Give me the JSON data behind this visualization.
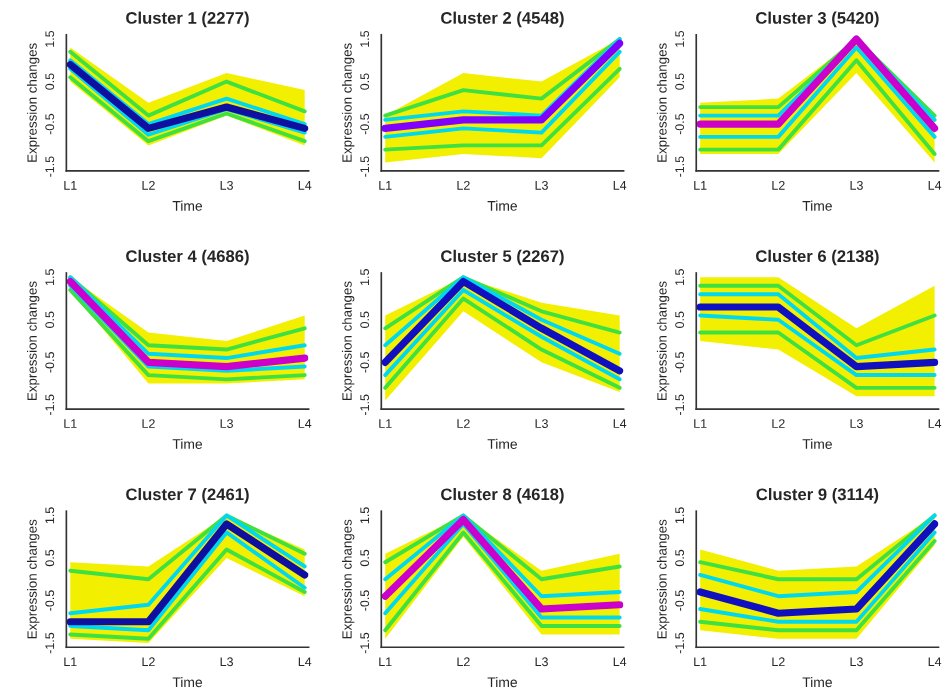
{
  "chart_data": [
    {
      "type": "line",
      "title": "Cluster 1 (2277)",
      "xlabel": "Time",
      "ylabel": "Expression changes",
      "categories": [
        "L1",
        "L2",
        "L3",
        "L4"
      ],
      "ylim": [
        -1.6,
        1.6
      ],
      "yticks": [
        -1.5,
        -0.5,
        0.5,
        1.5
      ],
      "grid": false,
      "series": [
        {
          "color": "#40e040",
          "values": [
            1.2,
            -0.3,
            0.5,
            -0.2
          ]
        },
        {
          "color": "#40e040",
          "values": [
            0.6,
            -0.9,
            -0.25,
            -0.9
          ]
        },
        {
          "color": "#00d8f0",
          "values": [
            1.0,
            -0.5,
            0.1,
            -0.5
          ]
        },
        {
          "color": "#00d8f0",
          "values": [
            0.8,
            -0.75,
            -0.15,
            -0.7
          ]
        },
        {
          "color": "#1010a0",
          "values": [
            0.9,
            -0.6,
            -0.1,
            -0.6
          ],
          "lower": [
            0.5,
            -1.0,
            -0.3,
            -1.0
          ],
          "upper": [
            1.3,
            0.0,
            0.7,
            0.3
          ]
        }
      ]
    },
    {
      "type": "line",
      "title": "Cluster 2 (4548)",
      "xlabel": "Time",
      "ylabel": "Expression changes",
      "categories": [
        "L1",
        "L2",
        "L3",
        "L4"
      ],
      "ylim": [
        -1.6,
        1.6
      ],
      "yticks": [
        -1.5,
        -0.5,
        0.5,
        1.5
      ],
      "grid": false,
      "series": [
        {
          "color": "#40e040",
          "values": [
            -0.3,
            0.3,
            0.1,
            1.5
          ]
        },
        {
          "color": "#40e040",
          "values": [
            -1.1,
            -1.0,
            -1.0,
            0.8
          ]
        },
        {
          "color": "#00d8f0",
          "values": [
            -0.4,
            -0.2,
            -0.3,
            1.5
          ]
        },
        {
          "color": "#00d8f0",
          "values": [
            -0.8,
            -0.6,
            -0.7,
            1.2
          ]
        },
        {
          "color": "#8000ff",
          "values": [
            -0.6,
            -0.4,
            -0.4,
            1.4
          ],
          "lower": [
            -1.4,
            -1.2,
            -1.3,
            0.6
          ],
          "upper": [
            -0.3,
            0.7,
            0.5,
            1.5
          ]
        }
      ]
    },
    {
      "type": "line",
      "title": "Cluster 3 (5420)",
      "xlabel": "Time",
      "ylabel": "Expression changes",
      "categories": [
        "L1",
        "L2",
        "L3",
        "L4"
      ],
      "ylim": [
        -1.6,
        1.6
      ],
      "yticks": [
        -1.5,
        -0.5,
        0.5,
        1.5
      ],
      "grid": false,
      "series": [
        {
          "color": "#40e040",
          "values": [
            -0.1,
            -0.1,
            1.5,
            -0.3
          ]
        },
        {
          "color": "#40e040",
          "values": [
            -1.1,
            -1.1,
            1.0,
            -1.2
          ]
        },
        {
          "color": "#00d8f0",
          "values": [
            -0.3,
            -0.3,
            1.5,
            -0.4
          ]
        },
        {
          "color": "#00d8f0",
          "values": [
            -0.8,
            -0.8,
            1.3,
            -0.8
          ]
        },
        {
          "color": "#cc00cc",
          "values": [
            -0.5,
            -0.5,
            1.5,
            -0.6
          ],
          "lower": [
            -1.2,
            -1.2,
            0.7,
            -1.4
          ],
          "upper": [
            0.0,
            0.1,
            1.5,
            -0.3
          ]
        }
      ]
    },
    {
      "type": "line",
      "title": "Cluster 4 (4686)",
      "xlabel": "Time",
      "ylabel": "Expression changes",
      "categories": [
        "L1",
        "L2",
        "L3",
        "L4"
      ],
      "ylim": [
        -1.6,
        1.6
      ],
      "yticks": [
        -1.5,
        -0.5,
        0.5,
        1.5
      ],
      "grid": false,
      "series": [
        {
          "color": "#40e040",
          "values": [
            1.5,
            -0.1,
            -0.2,
            0.3
          ]
        },
        {
          "color": "#40e040",
          "values": [
            1.2,
            -0.8,
            -0.9,
            -0.8
          ]
        },
        {
          "color": "#00d8f0",
          "values": [
            1.5,
            -0.3,
            -0.4,
            -0.1
          ]
        },
        {
          "color": "#00d8f0",
          "values": [
            1.3,
            -0.6,
            -0.7,
            -0.6
          ]
        },
        {
          "color": "#cc00cc",
          "values": [
            1.4,
            -0.5,
            -0.6,
            -0.4
          ],
          "lower": [
            1.2,
            -1.0,
            -1.0,
            -0.9
          ],
          "upper": [
            1.5,
            0.2,
            0.0,
            0.6
          ]
        }
      ]
    },
    {
      "type": "line",
      "title": "Cluster 5 (2267)",
      "xlabel": "Time",
      "ylabel": "Expression changes",
      "categories": [
        "L1",
        "L2",
        "L3",
        "L4"
      ],
      "ylim": [
        -1.6,
        1.6
      ],
      "yticks": [
        -1.5,
        -0.5,
        0.5,
        1.5
      ],
      "grid": false,
      "series": [
        {
          "color": "#40e040",
          "values": [
            0.3,
            1.5,
            0.7,
            0.2
          ]
        },
        {
          "color": "#40e040",
          "values": [
            -1.1,
            1.0,
            -0.2,
            -1.1
          ]
        },
        {
          "color": "#00d8f0",
          "values": [
            -0.1,
            1.5,
            0.5,
            -0.3
          ]
        },
        {
          "color": "#00d8f0",
          "values": [
            -0.8,
            1.2,
            0.1,
            -0.9
          ]
        },
        {
          "color": "#1010c0",
          "values": [
            -0.5,
            1.4,
            0.3,
            -0.7
          ],
          "lower": [
            -1.4,
            0.7,
            -0.5,
            -1.2
          ],
          "upper": [
            0.6,
            1.5,
            0.9,
            0.6
          ]
        }
      ]
    },
    {
      "type": "line",
      "title": "Cluster 6 (2138)",
      "xlabel": "Time",
      "ylabel": "Expression changes",
      "categories": [
        "L1",
        "L2",
        "L3",
        "L4"
      ],
      "ylim": [
        -1.6,
        1.6
      ],
      "yticks": [
        -1.5,
        -0.5,
        0.5,
        1.5
      ],
      "grid": false,
      "series": [
        {
          "color": "#40e040",
          "values": [
            1.3,
            1.3,
            -0.1,
            0.6
          ]
        },
        {
          "color": "#40e040",
          "values": [
            0.2,
            0.2,
            -1.1,
            -1.1
          ]
        },
        {
          "color": "#00d8f0",
          "values": [
            1.1,
            1.1,
            -0.4,
            -0.2
          ]
        },
        {
          "color": "#00d8f0",
          "values": [
            0.6,
            0.5,
            -0.8,
            -0.8
          ]
        },
        {
          "color": "#1010c0",
          "values": [
            0.8,
            0.8,
            -0.6,
            -0.5
          ],
          "lower": [
            0.0,
            -0.2,
            -1.3,
            -1.3
          ],
          "upper": [
            1.5,
            1.5,
            0.3,
            1.3
          ]
        }
      ]
    },
    {
      "type": "line",
      "title": "Cluster 7 (2461)",
      "xlabel": "Time",
      "ylabel": "Expression changes",
      "categories": [
        "L1",
        "L2",
        "L3",
        "L4"
      ],
      "ylim": [
        -1.6,
        1.6
      ],
      "yticks": [
        -1.5,
        -0.5,
        0.5,
        1.5
      ],
      "grid": false,
      "series": [
        {
          "color": "#40e040",
          "values": [
            0.2,
            0.0,
            1.5,
            0.6
          ]
        },
        {
          "color": "#40e040",
          "values": [
            -1.3,
            -1.4,
            0.7,
            -0.3
          ]
        },
        {
          "color": "#00d8f0",
          "values": [
            -0.8,
            -0.6,
            1.5,
            0.3
          ]
        },
        {
          "color": "#00d8f0",
          "values": [
            -1.1,
            -1.2,
            1.1,
            -0.2
          ]
        },
        {
          "color": "#1010a0",
          "values": [
            -1.0,
            -1.0,
            1.3,
            0.1
          ],
          "lower": [
            -1.4,
            -1.5,
            0.5,
            -0.4
          ],
          "upper": [
            0.4,
            0.3,
            1.5,
            0.7
          ]
        }
      ]
    },
    {
      "type": "line",
      "title": "Cluster 8 (4618)",
      "xlabel": "Time",
      "ylabel": "Expression changes",
      "categories": [
        "L1",
        "L2",
        "L3",
        "L4"
      ],
      "ylim": [
        -1.6,
        1.6
      ],
      "yticks": [
        -1.5,
        -0.5,
        0.5,
        1.5
      ],
      "grid": false,
      "series": [
        {
          "color": "#40e040",
          "values": [
            0.4,
            1.5,
            0.0,
            0.3
          ]
        },
        {
          "color": "#40e040",
          "values": [
            -1.2,
            1.1,
            -1.1,
            -1.1
          ]
        },
        {
          "color": "#00d8f0",
          "values": [
            0.0,
            1.5,
            -0.4,
            -0.3
          ]
        },
        {
          "color": "#00d8f0",
          "values": [
            -0.8,
            1.3,
            -0.9,
            -0.9
          ]
        },
        {
          "color": "#cc00cc",
          "values": [
            -0.4,
            1.4,
            -0.7,
            -0.6
          ],
          "lower": [
            -1.4,
            1.0,
            -1.3,
            -1.3
          ],
          "upper": [
            0.6,
            1.5,
            0.2,
            0.6
          ]
        }
      ]
    },
    {
      "type": "line",
      "title": "Cluster 9 (3114)",
      "xlabel": "Time",
      "ylabel": "Expression changes",
      "categories": [
        "L1",
        "L2",
        "L3",
        "L4"
      ],
      "ylim": [
        -1.6,
        1.6
      ],
      "yticks": [
        -1.5,
        -0.5,
        0.5,
        1.5
      ],
      "grid": false,
      "series": [
        {
          "color": "#40e040",
          "values": [
            0.4,
            0.0,
            0.0,
            1.5
          ]
        },
        {
          "color": "#40e040",
          "values": [
            -1.0,
            -1.2,
            -1.2,
            0.9
          ]
        },
        {
          "color": "#00d8f0",
          "values": [
            0.1,
            -0.4,
            -0.3,
            1.5
          ]
        },
        {
          "color": "#00d8f0",
          "values": [
            -0.7,
            -1.0,
            -1.0,
            1.1
          ]
        },
        {
          "color": "#1010c0",
          "values": [
            -0.3,
            -0.8,
            -0.7,
            1.3
          ],
          "lower": [
            -1.2,
            -1.4,
            -1.4,
            0.8
          ],
          "upper": [
            0.7,
            0.2,
            0.3,
            1.5
          ]
        }
      ]
    }
  ]
}
